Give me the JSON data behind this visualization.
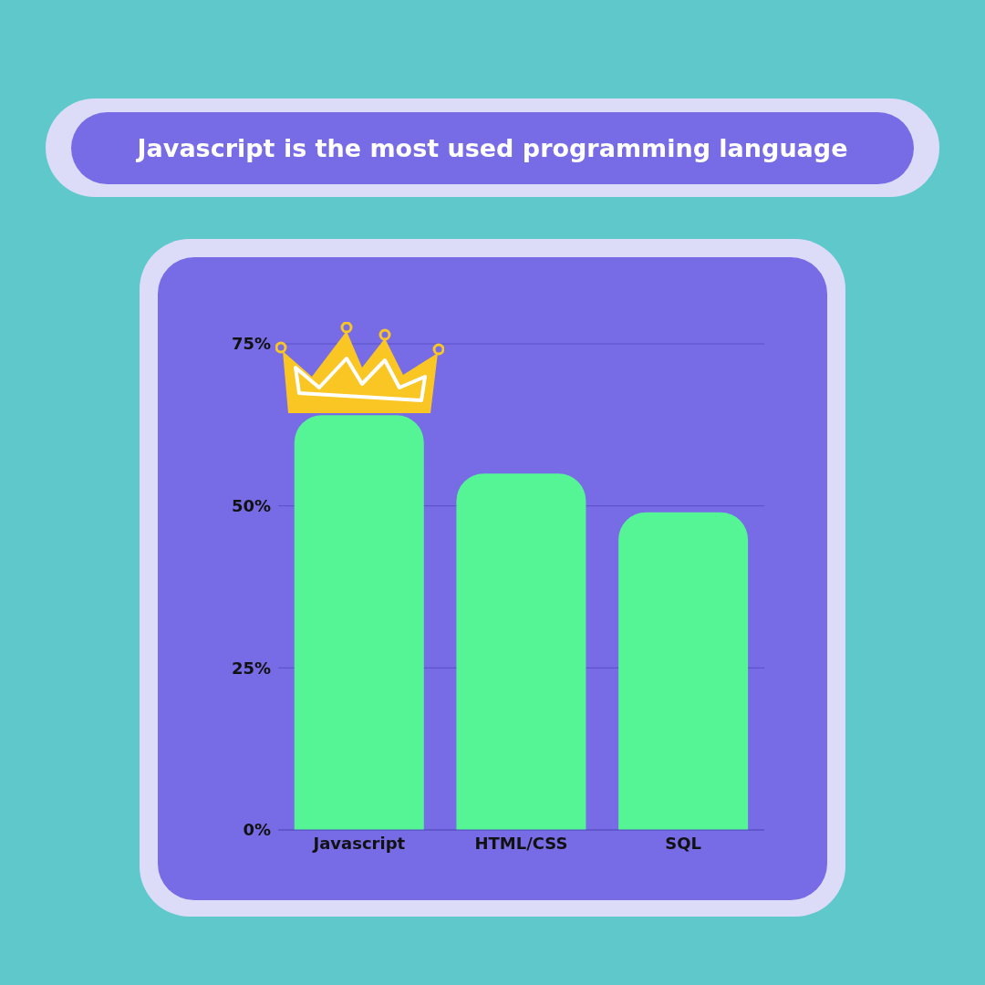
{
  "chart_data": {
    "type": "bar",
    "title": "Javascript is the most used programming language",
    "categories": [
      "Javascript",
      "HTML/CSS",
      "SQL"
    ],
    "values": [
      64,
      55,
      49
    ],
    "color": "#55f595",
    "ylim": [
      0,
      75
    ],
    "yticks": [
      {
        "value": 0,
        "label": "0%"
      },
      {
        "value": 25,
        "label": "25%"
      },
      {
        "value": 50,
        "label": "50%"
      },
      {
        "value": 75,
        "label": "75%"
      }
    ],
    "grid": "y"
  }
}
